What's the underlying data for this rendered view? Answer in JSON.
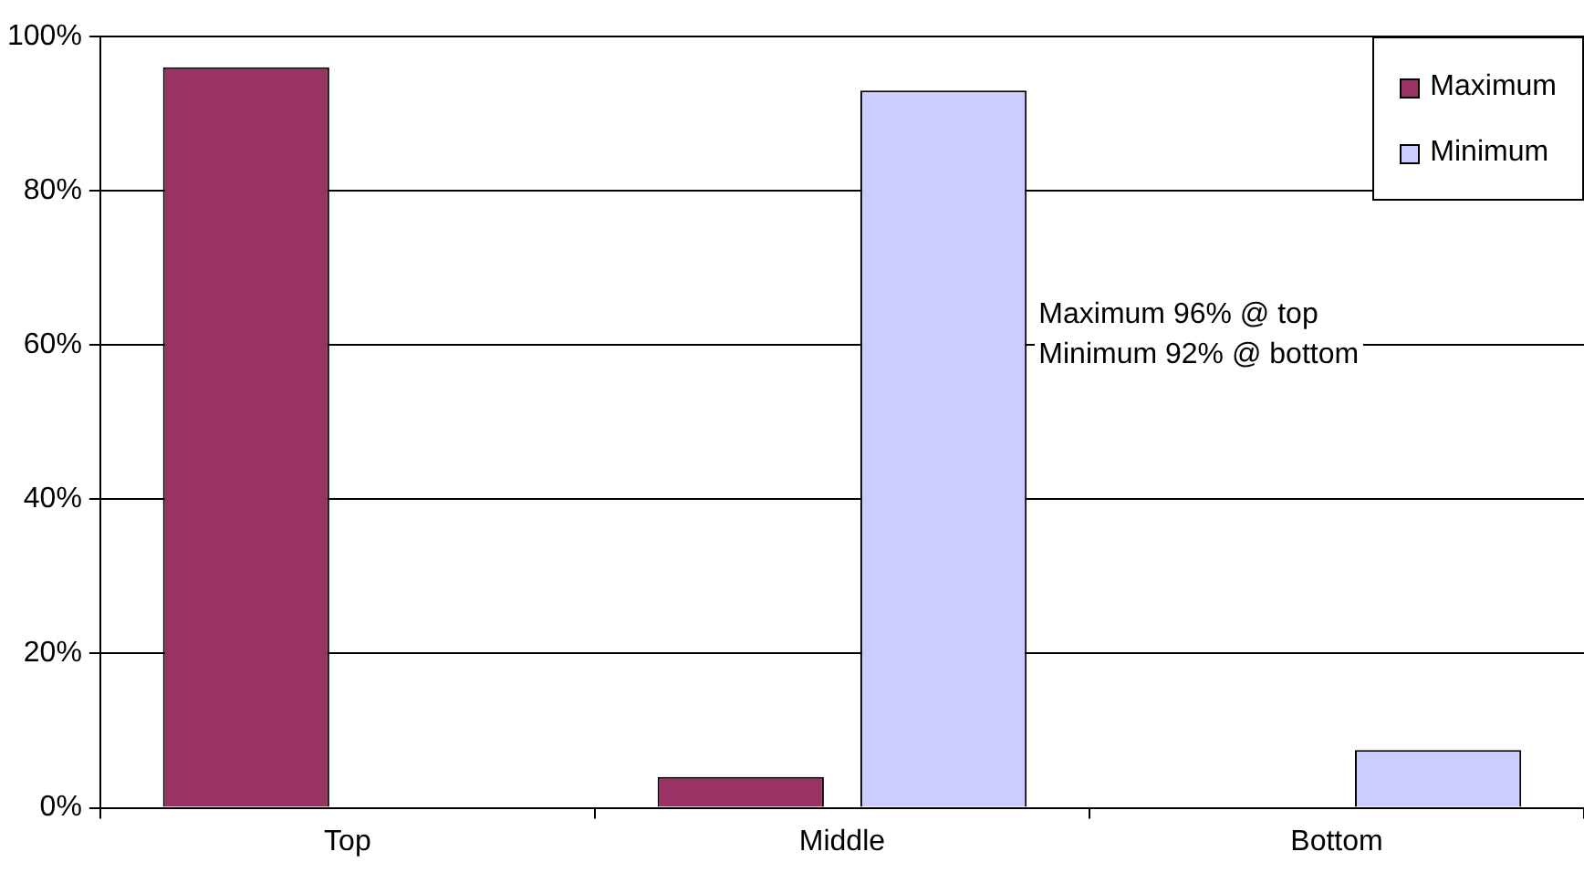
{
  "chart_data": {
    "type": "bar",
    "categories": [
      "Top",
      "Middle",
      "Bottom"
    ],
    "series": [
      {
        "name": "Maximum",
        "color": "#993366",
        "values": [
          96,
          4,
          0
        ]
      },
      {
        "name": "Minimum",
        "color": "#ccccff",
        "values": [
          0,
          93,
          7.5
        ]
      }
    ],
    "ylim": [
      0,
      100
    ],
    "yticks": [
      {
        "value": 0,
        "label": "0%"
      },
      {
        "value": 20,
        "label": "20%"
      },
      {
        "value": 40,
        "label": "40%"
      },
      {
        "value": 60,
        "label": "60%"
      },
      {
        "value": 80,
        "label": "80%"
      },
      {
        "value": 100,
        "label": "100%"
      }
    ],
    "grid": "y",
    "legend": "top right",
    "annotations": [
      "Maximum 96% @ top\nMinimum 92% @ bottom"
    ]
  }
}
